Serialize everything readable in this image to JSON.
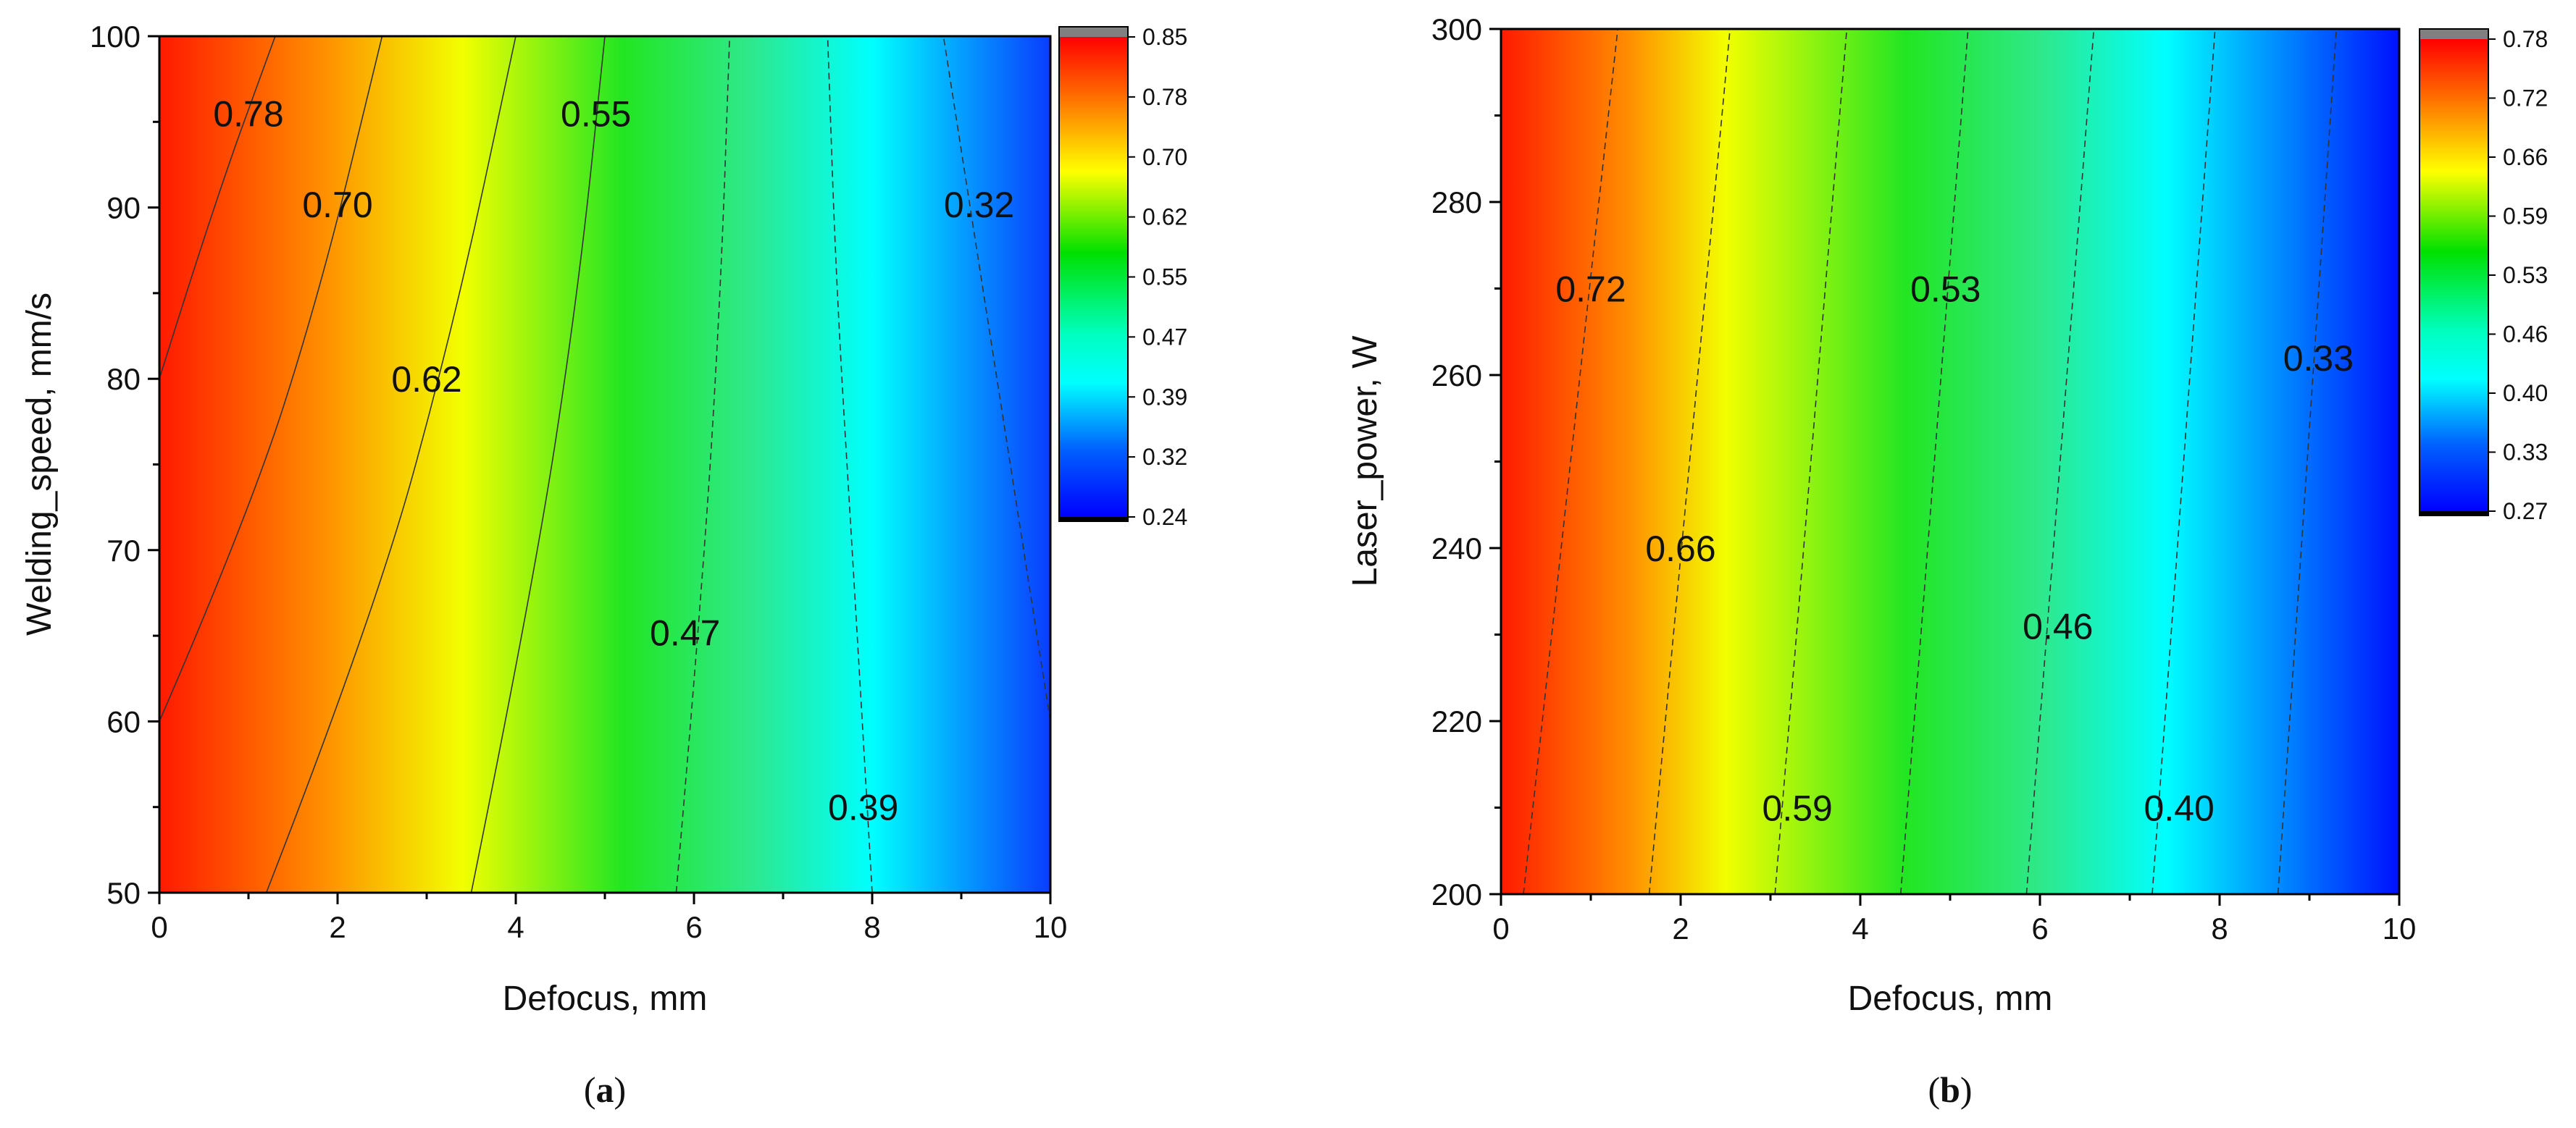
{
  "chart_data": [
    {
      "type": "contour",
      "caption_label": "a",
      "xlabel": "Defocus, mm",
      "ylabel": "Welding_speed, mm/s",
      "xlim": [
        0,
        10
      ],
      "ylim": [
        50,
        100
      ],
      "x_ticks": [
        "0",
        "2",
        "4",
        "6",
        "8",
        "10"
      ],
      "y_ticks": [
        "50",
        "60",
        "70",
        "80",
        "90",
        "100"
      ],
      "colorbar_ticks": [
        "0.85",
        "0.78",
        "0.70",
        "0.62",
        "0.55",
        "0.47",
        "0.39",
        "0.32",
        "0.24"
      ],
      "color_range": [
        0.24,
        0.85
      ],
      "contour_lines": [
        {
          "level": "0.78",
          "points": [
            [
              0,
              80
            ],
            [
              0.6,
              90
            ],
            [
              1.3,
              100
            ]
          ],
          "label_at": [
            1.0,
            95.5
          ]
        },
        {
          "level": "0.70",
          "points": [
            [
              0,
              60
            ],
            [
              1.0,
              72
            ],
            [
              1.8,
              85
            ],
            [
              2.5,
              100
            ]
          ],
          "label_at": [
            2.0,
            90.2
          ]
        },
        {
          "level": "0.62",
          "points": [
            [
              1.2,
              50
            ],
            [
              2.4,
              66
            ],
            [
              3.3,
              83
            ],
            [
              4.0,
              100
            ]
          ],
          "label_at": [
            3.0,
            80.0
          ]
        },
        {
          "level": "0.55",
          "points": [
            [
              3.5,
              50
            ],
            [
              4.2,
              68
            ],
            [
              4.7,
              85
            ],
            [
              5.0,
              100
            ]
          ],
          "label_at": [
            4.9,
            95.5
          ]
        },
        {
          "level": "0.47",
          "points": [
            [
              5.8,
              50
            ],
            [
              6.1,
              68
            ],
            [
              6.3,
              85
            ],
            [
              6.4,
              100
            ]
          ],
          "label_at": [
            5.9,
            65.2
          ]
        },
        {
          "level": "0.39",
          "points": [
            [
              8.0,
              50
            ],
            [
              7.8,
              68
            ],
            [
              7.6,
              85
            ],
            [
              7.5,
              100
            ]
          ],
          "label_at": [
            7.9,
            55.0
          ]
        },
        {
          "level": "0.32",
          "points": [
            [
              10.0,
              60
            ],
            [
              9.4,
              80
            ],
            [
              8.8,
              100
            ]
          ],
          "label_at": [
            9.2,
            90.2
          ]
        }
      ]
    },
    {
      "type": "contour",
      "caption_label": "b",
      "xlabel": "Defocus, mm",
      "ylabel": "Laser_power, W",
      "xlim": [
        0,
        10
      ],
      "ylim": [
        200,
        300
      ],
      "x_ticks": [
        "0",
        "2",
        "4",
        "6",
        "8",
        "10"
      ],
      "y_ticks": [
        "200",
        "220",
        "240",
        "260",
        "280",
        "300"
      ],
      "colorbar_ticks": [
        "0.78",
        "0.72",
        "0.66",
        "0.59",
        "0.53",
        "0.46",
        "0.40",
        "0.33",
        "0.27"
      ],
      "color_range": [
        0.27,
        0.78
      ],
      "contour_lines": [
        {
          "level": "0.72",
          "points": [
            [
              0.25,
              200
            ],
            [
              1.3,
              300
            ]
          ],
          "label_at": [
            1.0,
            270.0
          ]
        },
        {
          "level": "0.66",
          "points": [
            [
              1.65,
              200
            ],
            [
              2.55,
              300
            ]
          ],
          "label_at": [
            2.0,
            240.0
          ]
        },
        {
          "level": "0.59",
          "points": [
            [
              3.05,
              200
            ],
            [
              3.85,
              300
            ]
          ],
          "label_at": [
            3.3,
            210.0
          ]
        },
        {
          "level": "0.53",
          "points": [
            [
              4.45,
              200
            ],
            [
              5.2,
              300
            ]
          ],
          "label_at": [
            4.95,
            270.0
          ]
        },
        {
          "level": "0.46",
          "points": [
            [
              5.85,
              200
            ],
            [
              6.6,
              300
            ]
          ],
          "label_at": [
            6.2,
            231.0
          ]
        },
        {
          "level": "0.40",
          "points": [
            [
              7.25,
              200
            ],
            [
              7.95,
              300
            ]
          ],
          "label_at": [
            7.55,
            210.0
          ]
        },
        {
          "level": "0.33",
          "points": [
            [
              8.65,
              200
            ],
            [
              9.3,
              300
            ]
          ],
          "label_at": [
            9.1,
            262.0
          ]
        }
      ]
    }
  ]
}
